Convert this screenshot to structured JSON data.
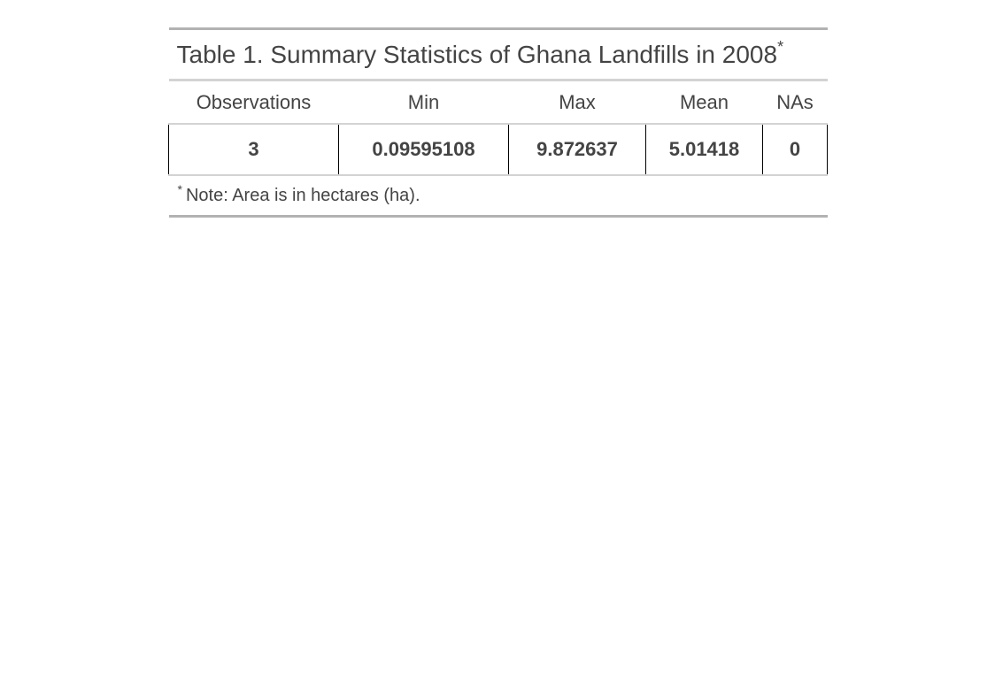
{
  "table": {
    "title": "Table 1. Summary Statistics of Ghana Landfills in 2008",
    "title_marker": "*",
    "columns": [
      "Observations",
      "Min",
      "Max",
      "Mean",
      "NAs"
    ],
    "rows": [
      [
        "3",
        "0.09595108",
        "9.872637",
        "5.01418",
        "0"
      ]
    ],
    "note_marker": "*",
    "note": "Note: Area is in hectares (ha)."
  }
}
